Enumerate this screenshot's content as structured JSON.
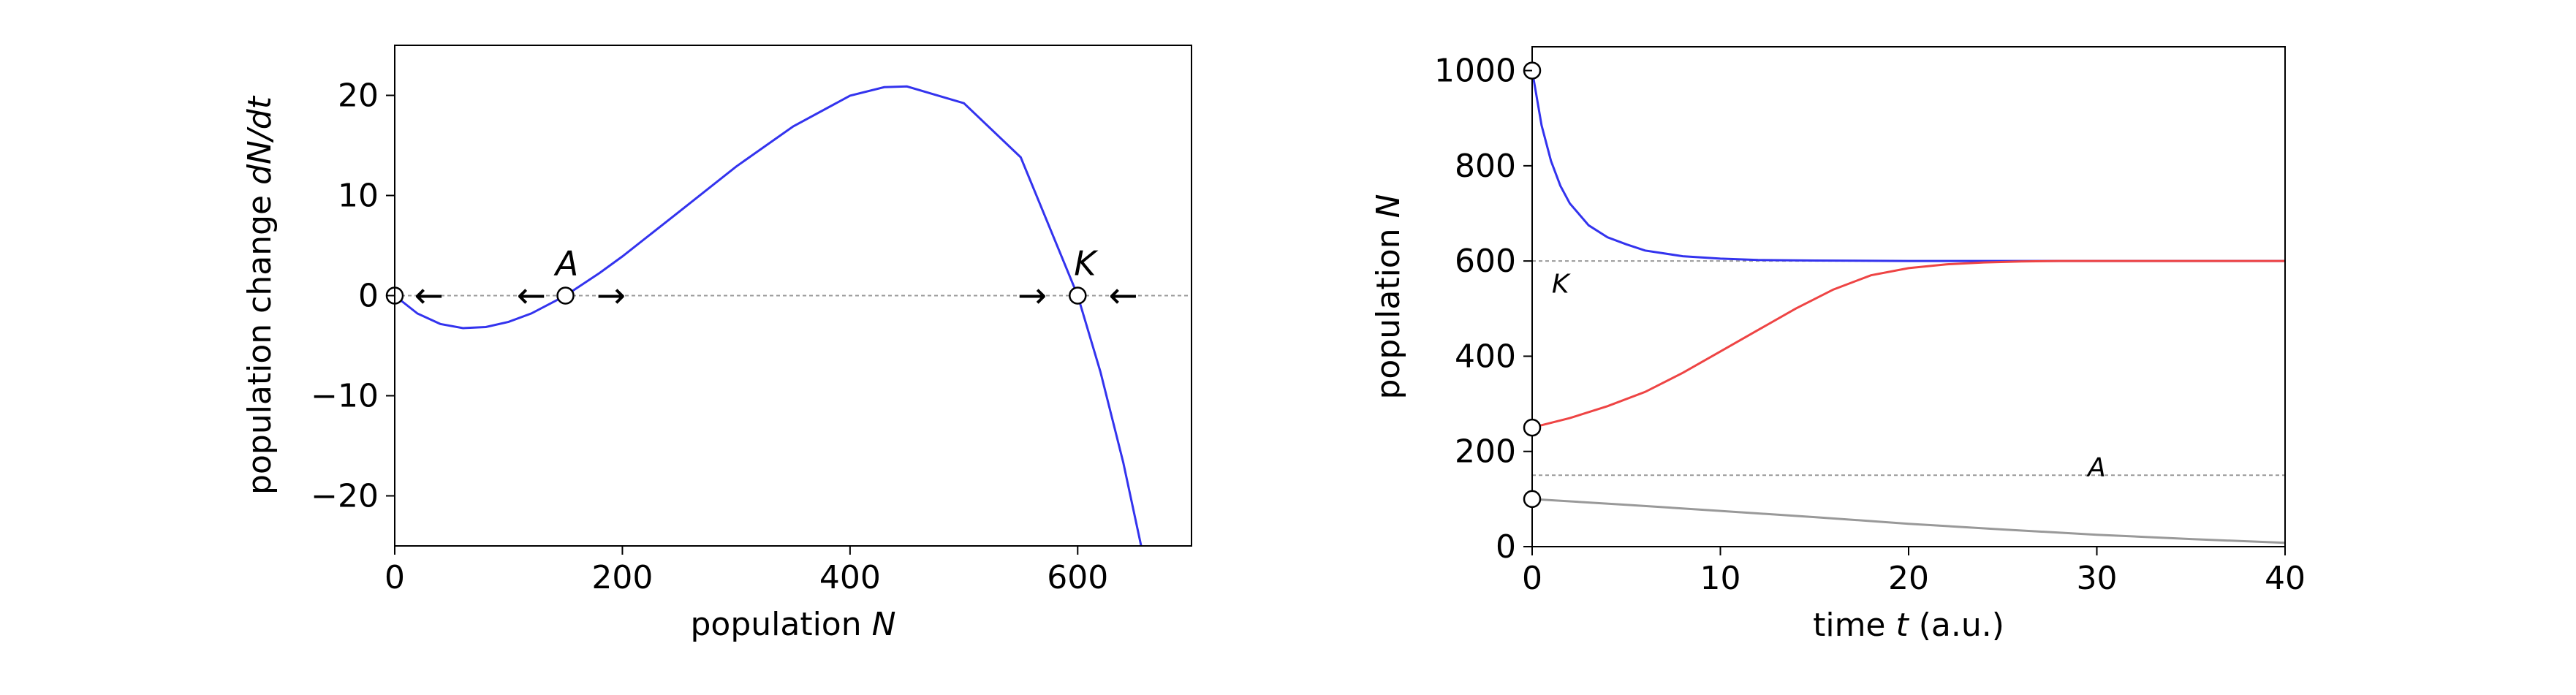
{
  "chart_data": [
    {
      "type": "line",
      "xlabel": {
        "prefix": "population ",
        "var": "N",
        "suffix": ""
      },
      "ylabel": {
        "prefix": "population change ",
        "var": "dN/dt",
        "suffix": ""
      },
      "xlim": [
        0,
        700
      ],
      "ylim": [
        -25,
        25
      ],
      "xticks": [
        0,
        200,
        400,
        600
      ],
      "yticks": [
        -20,
        -10,
        0,
        10,
        20
      ],
      "grid": false,
      "zero_line": {
        "y": 0,
        "style": "dotted",
        "color": "#999999"
      },
      "series": [
        {
          "color": "#3333ee",
          "x": [
            0,
            20,
            40,
            60,
            80,
            100,
            120,
            150,
            180,
            200,
            250,
            300,
            350,
            400,
            430,
            450,
            500,
            550,
            600,
            620,
            640,
            660
          ],
          "y": [
            0,
            -1.79,
            -2.83,
            -3.25,
            -3.14,
            -2.62,
            -1.78,
            0,
            2.26,
            3.91,
            8.39,
            12.89,
            16.9,
            19.97,
            20.82,
            20.89,
            19.22,
            13.81,
            0,
            -7.61,
            -16.66,
            -27.24
          ]
        }
      ],
      "equilibria": [
        {
          "x": 0,
          "y": 0,
          "label": ""
        },
        {
          "x": 150,
          "y": 0,
          "label": "A"
        },
        {
          "x": 600,
          "y": 0,
          "label": "K"
        }
      ],
      "flow_arrows": [
        {
          "x": 30,
          "symbol": "←"
        },
        {
          "x": 120,
          "symbol": "←"
        },
        {
          "x": 190,
          "symbol": "→"
        },
        {
          "x": 560,
          "symbol": "→"
        },
        {
          "x": 640,
          "symbol": "←"
        }
      ]
    },
    {
      "type": "line",
      "xlabel": {
        "prefix": "time ",
        "var": "t",
        "suffix": " (a.u.)"
      },
      "ylabel": {
        "prefix": "population ",
        "var": "N",
        "suffix": ""
      },
      "xlim": [
        0,
        40
      ],
      "ylim": [
        0,
        1050
      ],
      "xticks": [
        0,
        10,
        20,
        30,
        40
      ],
      "yticks": [
        0,
        200,
        400,
        600,
        800,
        1000
      ],
      "grid": false,
      "reference_lines": [
        {
          "y": 600,
          "label": "K",
          "label_x": 1.5,
          "label_y": 555
        },
        {
          "y": 150,
          "label": "A",
          "label_x": 30,
          "label_y": 170
        }
      ],
      "series": [
        {
          "color": "#3333ee",
          "x": [
            0,
            0.5,
            1,
            1.5,
            2,
            3,
            4,
            5,
            6,
            8,
            10,
            12,
            15,
            20,
            25,
            30,
            35,
            40
          ],
          "y": [
            1000,
            885,
            810,
            758,
            721,
            675,
            650,
            635,
            622,
            610,
            605,
            602,
            601,
            600,
            600,
            600,
            600,
            600
          ]
        },
        {
          "color": "#ee4444",
          "x": [
            0,
            2,
            4,
            6,
            8,
            10,
            12,
            14,
            16,
            18,
            20,
            22,
            24,
            26,
            28,
            30,
            35,
            40
          ],
          "y": [
            250,
            270,
            295,
            325,
            365,
            410,
            455,
            500,
            540,
            570,
            585,
            593,
            597,
            599,
            600,
            600,
            600,
            600
          ]
        },
        {
          "color": "#999999",
          "x": [
            0,
            5,
            10,
            15,
            20,
            25,
            30,
            35,
            40
          ],
          "y": [
            100,
            88,
            75,
            62,
            48,
            36,
            25,
            16,
            8
          ]
        }
      ],
      "initial_points": [
        {
          "x": 0,
          "y": 1000
        },
        {
          "x": 0,
          "y": 250
        },
        {
          "x": 0,
          "y": 100
        }
      ]
    }
  ]
}
